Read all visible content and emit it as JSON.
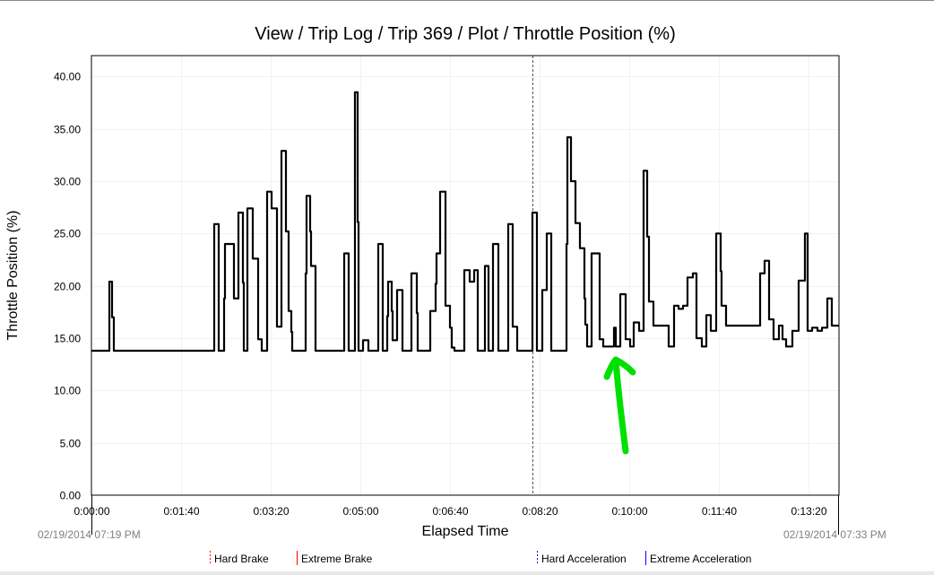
{
  "chart_data": {
    "type": "line",
    "step": true,
    "title": "View / Trip Log / Trip 369 / Plot / Throttle Position (%)",
    "xlabel": "Elapsed Time",
    "ylabel": "Throttle Position (%)",
    "xlim": [
      0,
      834
    ],
    "ylim": [
      0,
      42
    ],
    "grid": true,
    "x_ticks": [
      0,
      100,
      200,
      300,
      400,
      500,
      600,
      700,
      800
    ],
    "x_tick_labels": [
      "0:00:00",
      "0:01:40",
      "0:03:20",
      "0:05:00",
      "0:06:40",
      "0:08:20",
      "0:10:00",
      "0:11:40",
      "0:13:20"
    ],
    "y_ticks": [
      0,
      5,
      10,
      15,
      20,
      25,
      30,
      35,
      40
    ],
    "y_tick_labels": [
      "0.00",
      "5.00",
      "10.00",
      "15.00",
      "20.00",
      "25.00",
      "30.00",
      "35.00",
      "40.00"
    ],
    "start_time_label": "02/19/2014 07:19 PM",
    "end_time_label": "02/19/2014 07:33 PM",
    "cursor_line_x": 492,
    "series": [
      {
        "name": "Throttle Position (%)",
        "color": "#000000",
        "points": [
          [
            0,
            13.8
          ],
          [
            20,
            20.4
          ],
          [
            23,
            17.0
          ],
          [
            25,
            13.8
          ],
          [
            137,
            25.9
          ],
          [
            142,
            13.8
          ],
          [
            148,
            18.8
          ],
          [
            149,
            24.0
          ],
          [
            159,
            18.8
          ],
          [
            164,
            27.0
          ],
          [
            169,
            20.3
          ],
          [
            170,
            13.8
          ],
          [
            174,
            27.4
          ],
          [
            180,
            22.6
          ],
          [
            186,
            14.9
          ],
          [
            190,
            13.8
          ],
          [
            196,
            29.0
          ],
          [
            201,
            27.4
          ],
          [
            207,
            16.1
          ],
          [
            212,
            32.9
          ],
          [
            217,
            25.2
          ],
          [
            220,
            17.6
          ],
          [
            223,
            15.6
          ],
          [
            224,
            13.8
          ],
          [
            239,
            21.2
          ],
          [
            240,
            28.6
          ],
          [
            244,
            25.2
          ],
          [
            245,
            21.9
          ],
          [
            250,
            13.8
          ],
          [
            282,
            23.1
          ],
          [
            287,
            13.8
          ],
          [
            294,
            38.5
          ],
          [
            297,
            26.1
          ],
          [
            298,
            13.8
          ],
          [
            303,
            14.8
          ],
          [
            309,
            13.8
          ],
          [
            320,
            24.0
          ],
          [
            325,
            13.8
          ],
          [
            330,
            17.1
          ],
          [
            331,
            20.4
          ],
          [
            335,
            17.6
          ],
          [
            336,
            14.8
          ],
          [
            341,
            19.6
          ],
          [
            347,
            13.8
          ],
          [
            357,
            21.2
          ],
          [
            363,
            17.4
          ],
          [
            364,
            13.8
          ],
          [
            378,
            17.6
          ],
          [
            384,
            20.2
          ],
          [
            385,
            23.1
          ],
          [
            389,
            29.0
          ],
          [
            395,
            18.1
          ],
          [
            400,
            16.0
          ],
          [
            402,
            14.1
          ],
          [
            405,
            13.8
          ],
          [
            416,
            21.5
          ],
          [
            422,
            20.4
          ],
          [
            427,
            21.5
          ],
          [
            431,
            13.8
          ],
          [
            439,
            21.9
          ],
          [
            443,
            13.8
          ],
          [
            448,
            24.0
          ],
          [
            454,
            13.8
          ],
          [
            465,
            25.9
          ],
          [
            470,
            16.1
          ],
          [
            475,
            13.8
          ],
          [
            492,
            27.0
          ],
          [
            497,
            13.8
          ],
          [
            503,
            19.6
          ],
          [
            508,
            25.0
          ],
          [
            513,
            13.8
          ],
          [
            530,
            24.0
          ],
          [
            531,
            34.2
          ],
          [
            535,
            30.0
          ],
          [
            540,
            26.0
          ],
          [
            545,
            23.6
          ],
          [
            550,
            18.8
          ],
          [
            551,
            16.3
          ],
          [
            553,
            14.2
          ],
          [
            558,
            23.1
          ],
          [
            567,
            14.9
          ],
          [
            571,
            14.2
          ],
          [
            583,
            16.0
          ],
          [
            585,
            14.2
          ],
          [
            590,
            19.2
          ],
          [
            596,
            14.9
          ],
          [
            601,
            14.2
          ],
          [
            605,
            16.5
          ],
          [
            611,
            15.7
          ],
          [
            616,
            31.0
          ],
          [
            620,
            24.7
          ],
          [
            622,
            18.5
          ],
          [
            627,
            16.2
          ],
          [
            644,
            14.2
          ],
          [
            650,
            18.1
          ],
          [
            655,
            17.8
          ],
          [
            660,
            18.1
          ],
          [
            665,
            20.8
          ],
          [
            671,
            21.2
          ],
          [
            675,
            15.0
          ],
          [
            681,
            14.2
          ],
          [
            686,
            17.2
          ],
          [
            691,
            15.7
          ],
          [
            697,
            25.0
          ],
          [
            702,
            21.4
          ],
          [
            703,
            18.1
          ],
          [
            708,
            16.2
          ],
          [
            746,
            21.2
          ],
          [
            751,
            22.4
          ],
          [
            756,
            16.8
          ],
          [
            761,
            14.9
          ],
          [
            767,
            16.2
          ],
          [
            771,
            14.9
          ],
          [
            775,
            14.2
          ],
          [
            782,
            15.7
          ],
          [
            789,
            20.5
          ],
          [
            796,
            25.0
          ],
          [
            799,
            15.7
          ],
          [
            804,
            16.0
          ],
          [
            810,
            15.7
          ],
          [
            815,
            16.0
          ],
          [
            821,
            18.8
          ],
          [
            826,
            16.2
          ],
          [
            834,
            16.2
          ]
        ]
      }
    ],
    "legend": {
      "placement": "bottom",
      "items": [
        {
          "label": "Hard Brake",
          "color": "#ff0000",
          "style": "dashed"
        },
        {
          "label": "Extreme Brake",
          "color": "#ff0000",
          "style": "solid"
        },
        {
          "label": "Hard Acceleration",
          "color": "#0000ff",
          "style": "dashed"
        },
        {
          "label": "Extreme Acceleration",
          "color": "#0000ff",
          "style": "solid"
        }
      ]
    },
    "annotation": {
      "type": "hand-drawn arrow",
      "color": "#00e000"
    }
  }
}
